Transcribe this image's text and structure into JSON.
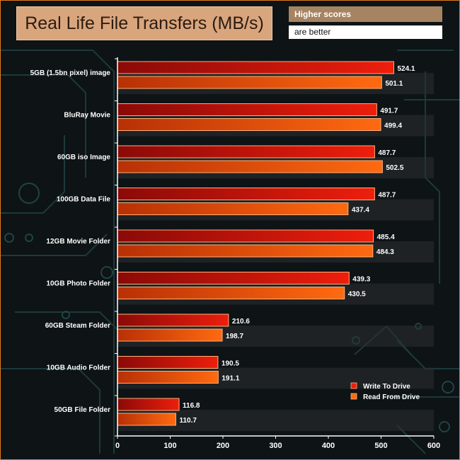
{
  "header": {
    "note_line1": "Higher scores",
    "note_line2": "are better"
  },
  "chart_data": {
    "type": "bar",
    "orientation": "horizontal",
    "title": "Real Life File Transfers (MB/s)",
    "categories": [
      "5GB (1.5bn pixel) image",
      "BluRay Movie",
      "60GB iso Image",
      "100GB Data File",
      "12GB Movie Folder",
      "10GB Photo Folder",
      "60GB Steam Folder",
      "10GB Audio Folder",
      "50GB File Folder"
    ],
    "series": [
      {
        "name": "Write To  Drive",
        "values": [
          524.1,
          491.7,
          487.7,
          487.7,
          485.4,
          439.3,
          210.6,
          190.5,
          116.8
        ]
      },
      {
        "name": "Read From  Drive",
        "values": [
          501.1,
          499.4,
          502.5,
          437.4,
          484.3,
          430.5,
          198.7,
          191.1,
          110.7
        ]
      }
    ],
    "xlim": [
      0,
      600
    ],
    "xticks": [
      0,
      100,
      200,
      300,
      400,
      500,
      600
    ],
    "xlabel": "",
    "ylabel": "",
    "legend_position": "bottom-right",
    "grid": false
  },
  "colors": {
    "write_dark": "#8a0a08",
    "write_light": "#ee1e0c",
    "read_dark": "#b83006",
    "read_light": "#ff6a10",
    "bar_border": "#ffb07a",
    "axis": "#ffffff"
  }
}
